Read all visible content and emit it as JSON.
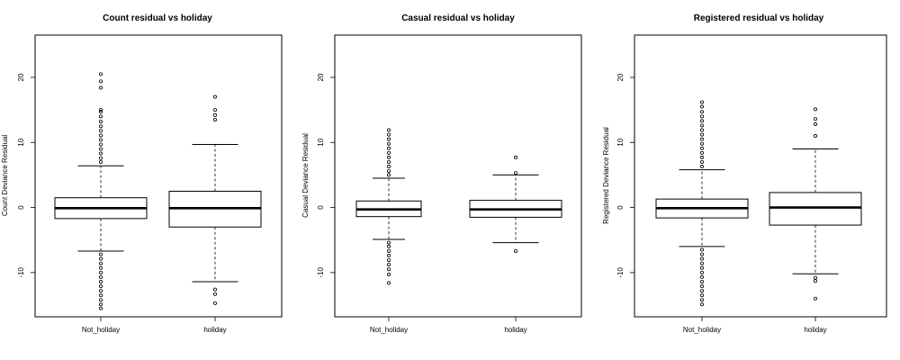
{
  "chart_data": [
    {
      "type": "boxplot",
      "title": "Count residual vs holiday",
      "xlabel": "",
      "ylabel": "Count Deviance Residual",
      "ylim": [
        -16.8,
        26.5
      ],
      "yticks": [
        -10,
        0,
        10,
        20
      ],
      "categories": [
        "Not_holiday",
        "holiday"
      ],
      "boxes": [
        {
          "category": "Not_holiday",
          "lower_whisker": -6.7,
          "q1": -1.7,
          "median": -0.1,
          "q3": 1.5,
          "upper_whisker": 6.4,
          "outliers_high": [
            7.0,
            7.6,
            8.3,
            9.0,
            9.7,
            10.4,
            11.1,
            11.8,
            12.5,
            13.2,
            14.0,
            14.7,
            15.0,
            18.4,
            19.4,
            20.5
          ],
          "outliers_low": [
            -7.2,
            -7.9,
            -8.6,
            -9.3,
            -10.0,
            -10.7,
            -11.4,
            -12.1,
            -12.8,
            -13.5,
            -14.2,
            -14.9,
            -15.5
          ]
        },
        {
          "category": "holiday",
          "lower_whisker": -11.4,
          "q1": -3.0,
          "median": -0.1,
          "q3": 2.5,
          "upper_whisker": 9.7,
          "outliers_high": [
            13.5,
            14.2,
            15.0,
            17.0
          ],
          "outliers_low": [
            -12.6,
            -13.3,
            -14.7
          ]
        }
      ]
    },
    {
      "type": "boxplot",
      "title": "Casual residual vs holiday",
      "xlabel": "",
      "ylabel": "Casual Deviance Residual",
      "ylim": [
        -16.8,
        26.5
      ],
      "yticks": [
        -10,
        0,
        10,
        20
      ],
      "categories": [
        "Not_holiday",
        "holiday"
      ],
      "boxes": [
        {
          "category": "Not_holiday",
          "lower_whisker": -4.9,
          "q1": -1.4,
          "median": -0.3,
          "q3": 1.0,
          "upper_whisker": 4.5,
          "outliers_high": [
            5.0,
            5.6,
            6.3,
            7.0,
            7.7,
            8.4,
            9.1,
            9.8,
            10.5,
            11.2,
            11.9
          ],
          "outliers_low": [
            -5.4,
            -6.0,
            -6.7,
            -7.4,
            -8.1,
            -8.8,
            -9.5,
            -10.3,
            -11.6
          ]
        },
        {
          "category": "holiday",
          "lower_whisker": -5.4,
          "q1": -1.5,
          "median": -0.3,
          "q3": 1.1,
          "upper_whisker": 5.0,
          "outliers_high": [
            5.3,
            7.7
          ],
          "outliers_low": [
            -6.7
          ]
        }
      ]
    },
    {
      "type": "boxplot",
      "title": "Registered residual vs holiday",
      "xlabel": "",
      "ylabel": "Registered Deviance Residual",
      "ylim": [
        -16.8,
        26.5
      ],
      "yticks": [
        -10,
        0,
        10,
        20
      ],
      "categories": [
        "Not_holiday",
        "holiday"
      ],
      "boxes": [
        {
          "category": "Not_holiday",
          "lower_whisker": -6.0,
          "q1": -1.6,
          "median": -0.1,
          "q3": 1.3,
          "upper_whisker": 5.8,
          "outliers_high": [
            6.3,
            7.0,
            7.7,
            8.4,
            9.1,
            9.8,
            10.5,
            11.2,
            11.9,
            12.6,
            13.3,
            14.0,
            14.7,
            15.5,
            16.2
          ],
          "outliers_low": [
            -6.5,
            -7.2,
            -7.9,
            -8.6,
            -9.3,
            -10.0,
            -10.7,
            -11.4,
            -12.1,
            -12.8,
            -13.5,
            -14.2,
            -14.9
          ]
        },
        {
          "category": "holiday",
          "lower_whisker": -10.2,
          "q1": -2.7,
          "median": 0.0,
          "q3": 2.3,
          "upper_whisker": 9.0,
          "outliers_high": [
            11.0,
            12.8,
            13.6,
            15.1
          ],
          "outliers_low": [
            -10.8,
            -11.3,
            -14.0
          ]
        }
      ]
    }
  ]
}
